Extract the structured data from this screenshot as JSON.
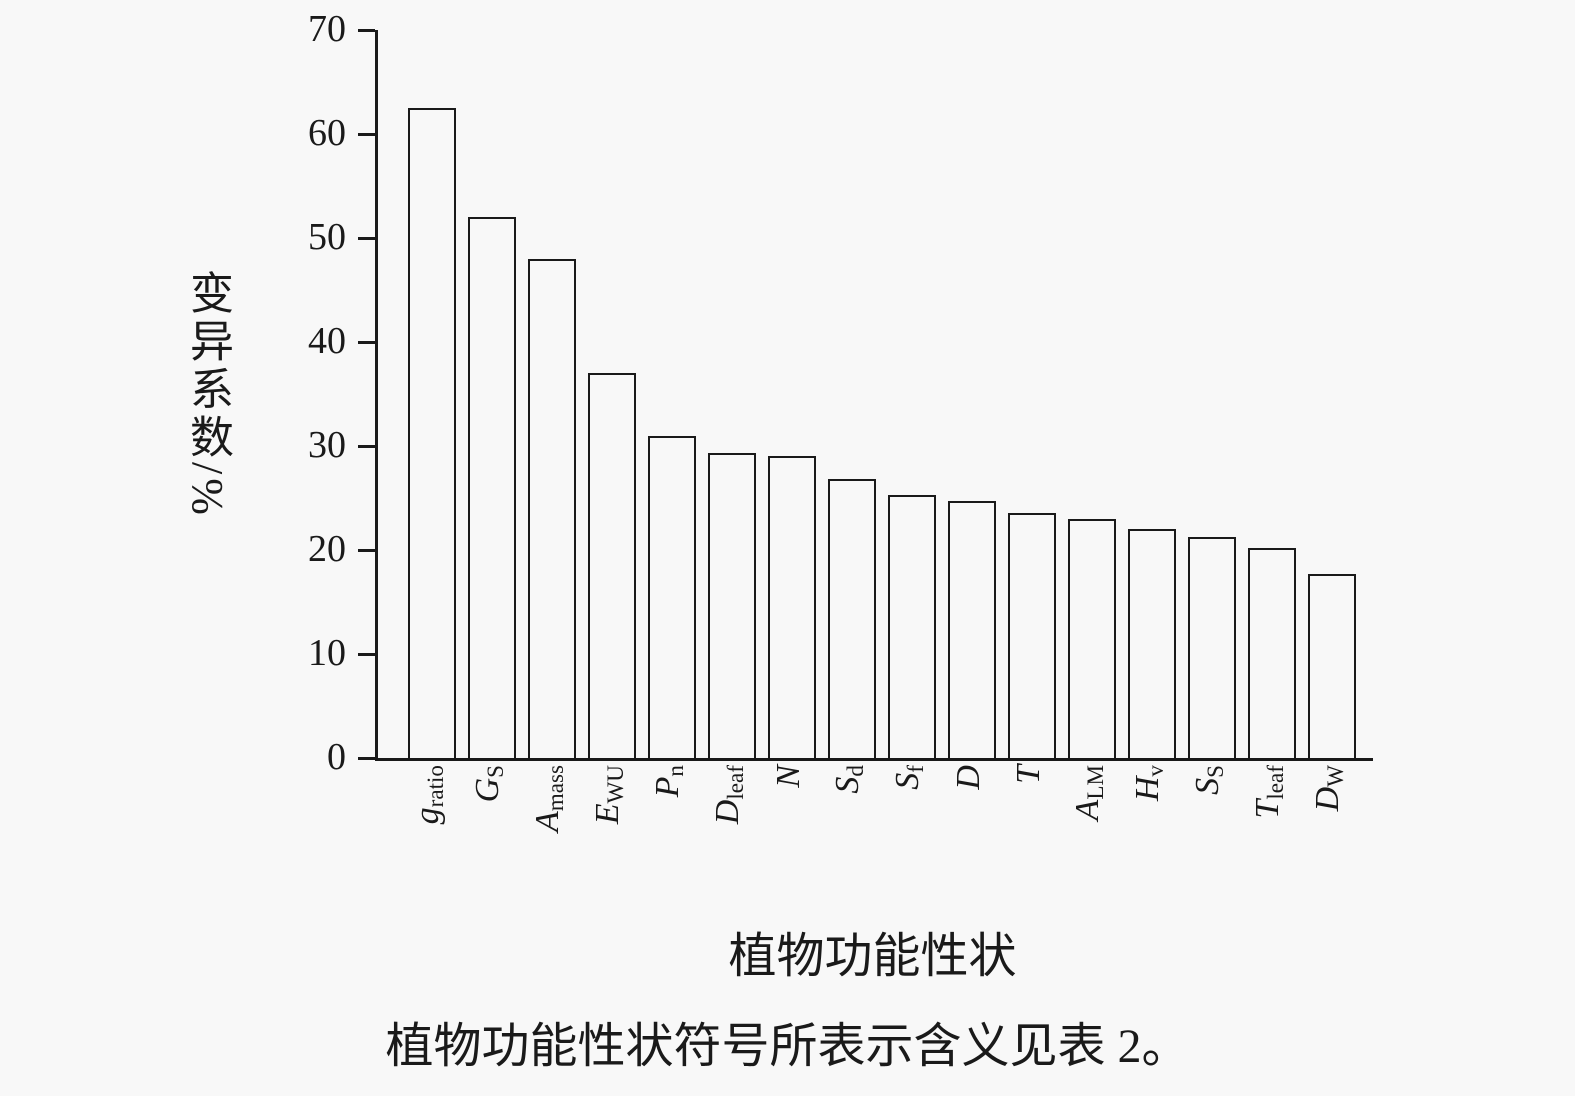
{
  "figure": {
    "background": "#f8f8f8",
    "ink": "#1a1a1a",
    "caption": "植物功能性状符号所表示含义见表 2。"
  },
  "chart_data": {
    "type": "bar",
    "title": "",
    "xlabel": "植物功能性状",
    "ylabel": "变异系数/%",
    "ylim": [
      0,
      70
    ],
    "yticks": [
      0,
      10,
      20,
      30,
      40,
      50,
      60,
      70
    ],
    "grid": false,
    "legend": "none",
    "bar_fill": "none",
    "bar_border_color": "#1a1a1a",
    "categories": [
      "g_ratio",
      "G_S",
      "A_mass",
      "E_WU",
      "P_n",
      "D_leaf",
      "N",
      "S_d",
      "S_f",
      "D",
      "T",
      "A_LM",
      "H_v",
      "S_S",
      "T_leaf",
      "D_W"
    ],
    "category_labels": [
      {
        "main": "g",
        "sub": "ratio"
      },
      {
        "main": "G",
        "sub": "S"
      },
      {
        "main": "A",
        "sub": "mass"
      },
      {
        "main": "E",
        "sub": "WU"
      },
      {
        "main": "P",
        "sub": "n"
      },
      {
        "main": "D",
        "sub": "leaf"
      },
      {
        "main": "N",
        "sub": ""
      },
      {
        "main": "S",
        "sub": "d"
      },
      {
        "main": "S",
        "sub": "f"
      },
      {
        "main": "D",
        "sub": ""
      },
      {
        "main": "T",
        "sub": ""
      },
      {
        "main": "A",
        "sub": "LM"
      },
      {
        "main": "H",
        "sub": "v"
      },
      {
        "main": "S",
        "sub": "S"
      },
      {
        "main": "T",
        "sub": "leaf"
      },
      {
        "main": "D",
        "sub": "W"
      }
    ],
    "values": [
      62.5,
      52,
      48,
      37,
      31,
      29.3,
      29,
      26.8,
      25.3,
      24.7,
      23.6,
      23,
      22,
      21.3,
      20.2,
      17.7
    ]
  }
}
